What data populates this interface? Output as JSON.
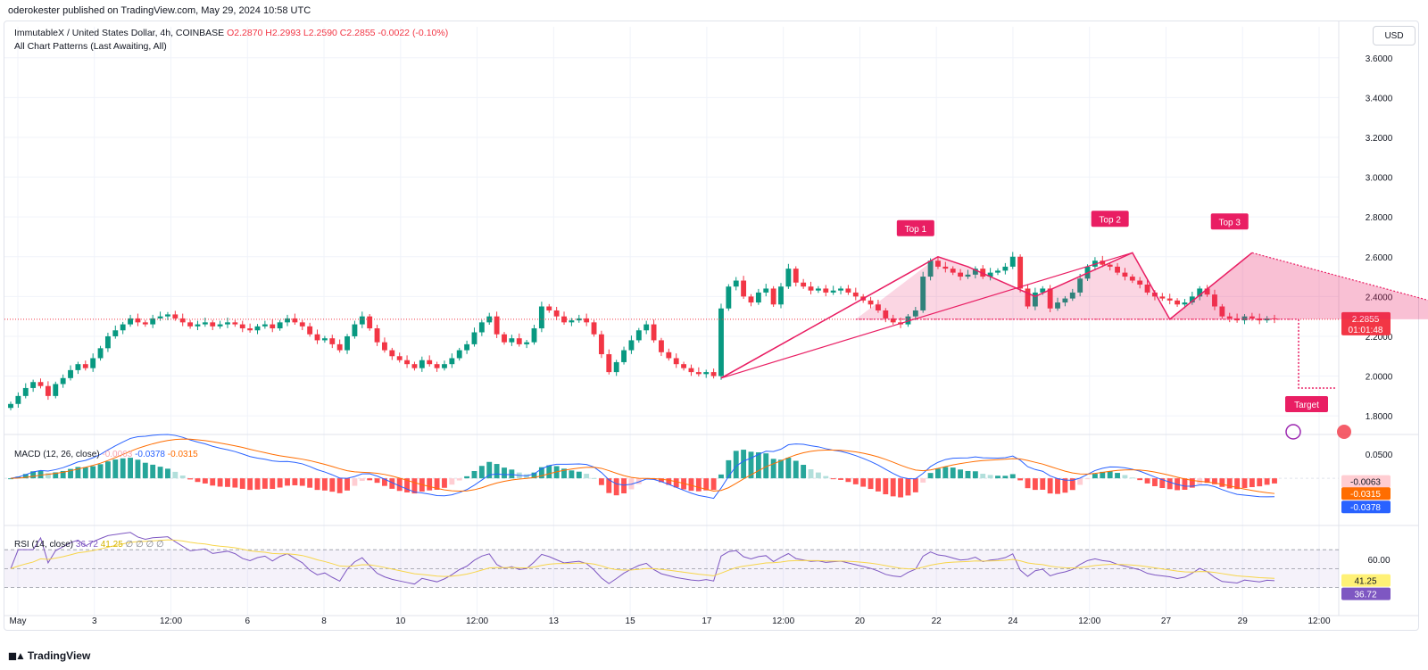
{
  "header": {
    "publisher_line": "oderokester published on TradingView.com, May 29, 2024 10:58 UTC"
  },
  "legend": {
    "symbol": "ImmutableX / United States Dollar, 4h, COINBASE",
    "ohlc": "O2.2870 H2.2993 L2.2590 C2.2855 -0.0022 (-0.10%)",
    "indicator": "All Chart Patterns (Last Awaiting, All)"
  },
  "currency_button": "USD",
  "macd_legend": {
    "title": "MACD (12, 26, close)",
    "hist": "-0.0063",
    "macd": "-0.0378",
    "signal": "-0.0315"
  },
  "rsi_legend": {
    "title": "RSI (14, close)",
    "rsi": "36.72",
    "ma": "41.25",
    "extra": "∅ ∅ ∅ ∅"
  },
  "footer": {
    "brand": "TradingView"
  },
  "colors": {
    "up": "#089981",
    "down": "#f23645",
    "pattern": "#e91e63",
    "macd_line": "#2962ff",
    "signal_line": "#ff6d00",
    "rsi_line": "#7e57c2",
    "rsi_ma": "#f7d54a"
  },
  "chart_data": [
    {
      "type": "candlestick",
      "title": "ImmutableX / United States Dollar, 4h, COINBASE",
      "y_axis_labels": [
        "3.6000",
        "3.4000",
        "3.2000",
        "3.0000",
        "2.8000",
        "2.6000",
        "2.4000",
        "2.2000",
        "2.0000",
        "1.8000"
      ],
      "ylim": [
        1.72,
        3.72
      ],
      "x_axis_labels": [
        "May",
        "3",
        "12:00",
        "6",
        "8",
        "10",
        "12:00",
        "13",
        "15",
        "17",
        "12:00",
        "20",
        "22",
        "24",
        "12:00",
        "27",
        "29",
        "12:00"
      ],
      "last_price": "2.2855",
      "countdown": "01:01:48",
      "closes": [
        1.86,
        1.9,
        1.94,
        1.97,
        1.95,
        1.9,
        1.96,
        1.99,
        2.03,
        2.06,
        2.04,
        2.09,
        2.14,
        2.2,
        2.23,
        2.26,
        2.29,
        2.27,
        2.26,
        2.29,
        2.3,
        2.31,
        2.29,
        2.27,
        2.25,
        2.26,
        2.27,
        2.25,
        2.26,
        2.27,
        2.26,
        2.24,
        2.23,
        2.25,
        2.26,
        2.24,
        2.27,
        2.29,
        2.27,
        2.25,
        2.21,
        2.18,
        2.19,
        2.16,
        2.13,
        2.2,
        2.26,
        2.3,
        2.24,
        2.17,
        2.13,
        2.1,
        2.08,
        2.06,
        2.04,
        2.08,
        2.06,
        2.04,
        2.06,
        2.09,
        2.13,
        2.16,
        2.22,
        2.27,
        2.3,
        2.21,
        2.17,
        2.19,
        2.16,
        2.17,
        2.24,
        2.35,
        2.33,
        2.3,
        2.27,
        2.28,
        2.29,
        2.27,
        2.21,
        2.11,
        2.02,
        2.07,
        2.13,
        2.18,
        2.23,
        2.26,
        2.18,
        2.12,
        2.09,
        2.06,
        2.04,
        2.02,
        2.01,
        2.02,
        2.0,
        2.34,
        2.45,
        2.48,
        2.4,
        2.37,
        2.42,
        2.44,
        2.36,
        2.45,
        2.54,
        2.47,
        2.45,
        2.43,
        2.44,
        2.42,
        2.43,
        2.44,
        2.42,
        2.4,
        2.38,
        2.36,
        2.33,
        2.29,
        2.27,
        2.26,
        2.3,
        2.33,
        2.5,
        2.58,
        2.55,
        2.54,
        2.52,
        2.5,
        2.51,
        2.54,
        2.5,
        2.52,
        2.53,
        2.55,
        2.6,
        2.44,
        2.35,
        2.42,
        2.44,
        2.34,
        2.37,
        2.39,
        2.42,
        2.49,
        2.55,
        2.58,
        2.56,
        2.55,
        2.52,
        2.5,
        2.48,
        2.46,
        2.42,
        2.4,
        2.39,
        2.38,
        2.36,
        2.37,
        2.4,
        2.44,
        2.41,
        2.35,
        2.3,
        2.29,
        2.28,
        2.3,
        2.29,
        2.28,
        2.29,
        2.2855
      ],
      "patterns": [
        {
          "label": "Top 1",
          "price": 2.6
        },
        {
          "label": "Top 2",
          "price": 2.62
        },
        {
          "label": "Top 3",
          "price": 2.62
        },
        {
          "label": "Target",
          "price": 1.94
        }
      ]
    },
    {
      "type": "line",
      "title": "MACD (12, 26, close)",
      "y_axis_labels": [
        "0.0500"
      ],
      "ylim": [
        -0.09,
        0.085
      ],
      "series": [
        {
          "name": "MACD",
          "last": -0.0378
        },
        {
          "name": "Signal",
          "last": -0.0315
        },
        {
          "name": "Histogram",
          "last": -0.0063
        }
      ]
    },
    {
      "type": "line",
      "title": "RSI (14, close)",
      "y_axis_labels": [
        "60.00"
      ],
      "ylim": [
        5,
        90
      ],
      "series": [
        {
          "name": "RSI",
          "last": 36.72
        },
        {
          "name": "RSI MA",
          "last": 41.25
        }
      ]
    }
  ]
}
